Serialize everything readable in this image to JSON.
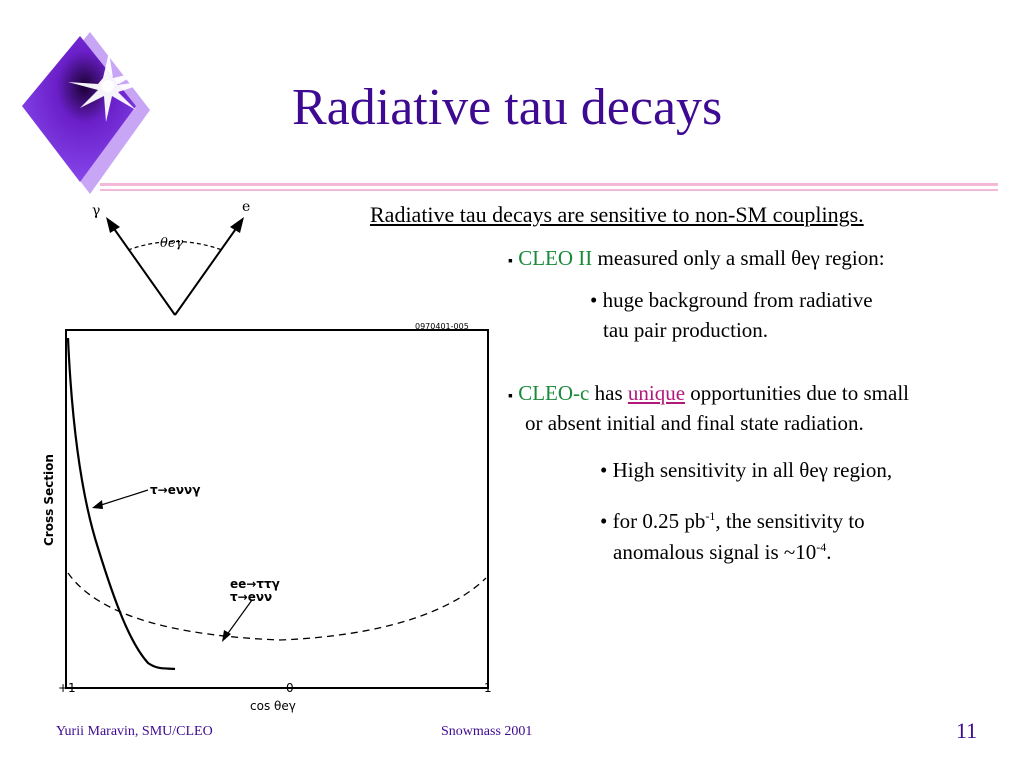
{
  "slide": {
    "title": "Radiative tau decays",
    "subtitle": "Radiative tau decays are sensitive to non-SM couplings.",
    "bullet1": {
      "marker": "▪",
      "highlight": "CLEO II",
      "text": " measured only a small θeγ region:"
    },
    "sub1": {
      "line1": "• huge background from radiative",
      "line2": "tau pair production."
    },
    "bullet2": {
      "marker": "▪",
      "highlight": "CLEO-c",
      "has": " has ",
      "unique": "unique",
      "line1_rest": " opportunities due to small",
      "line2": "or absent initial and final state radiation."
    },
    "sub2": "• High sensitivity in all θeγ region,",
    "sub3": {
      "pre": "• for 0.25 pb",
      "sup1": "-1",
      "mid": ", the sensitivity to",
      "line2_pre": "anomalous signal is ~10",
      "sup2": "-4",
      "line2_post": "."
    }
  },
  "figure": {
    "angle_labels": {
      "gamma": "γ",
      "e": "e",
      "theta": "θeγ"
    },
    "plot_id": "0970401-005",
    "ylabel": "Cross Section",
    "xlabel": "cos θeγ",
    "xticks": [
      "+1",
      "0",
      "−1"
    ],
    "curve1_label": "τ→eννγ",
    "curve2_label_line1": "ee→ττγ",
    "curve2_label_line2": "τ→eνν"
  },
  "footer": {
    "author": "Yurii Maravin, SMU/CLEO",
    "event": "Snowmass 2001",
    "page": "11"
  },
  "colors": {
    "title": "#3d0a91",
    "rule": "#f4b8d8",
    "cleo": "#1a8a3a",
    "unique": "#b0187a",
    "diamond": "#7a33e0"
  }
}
